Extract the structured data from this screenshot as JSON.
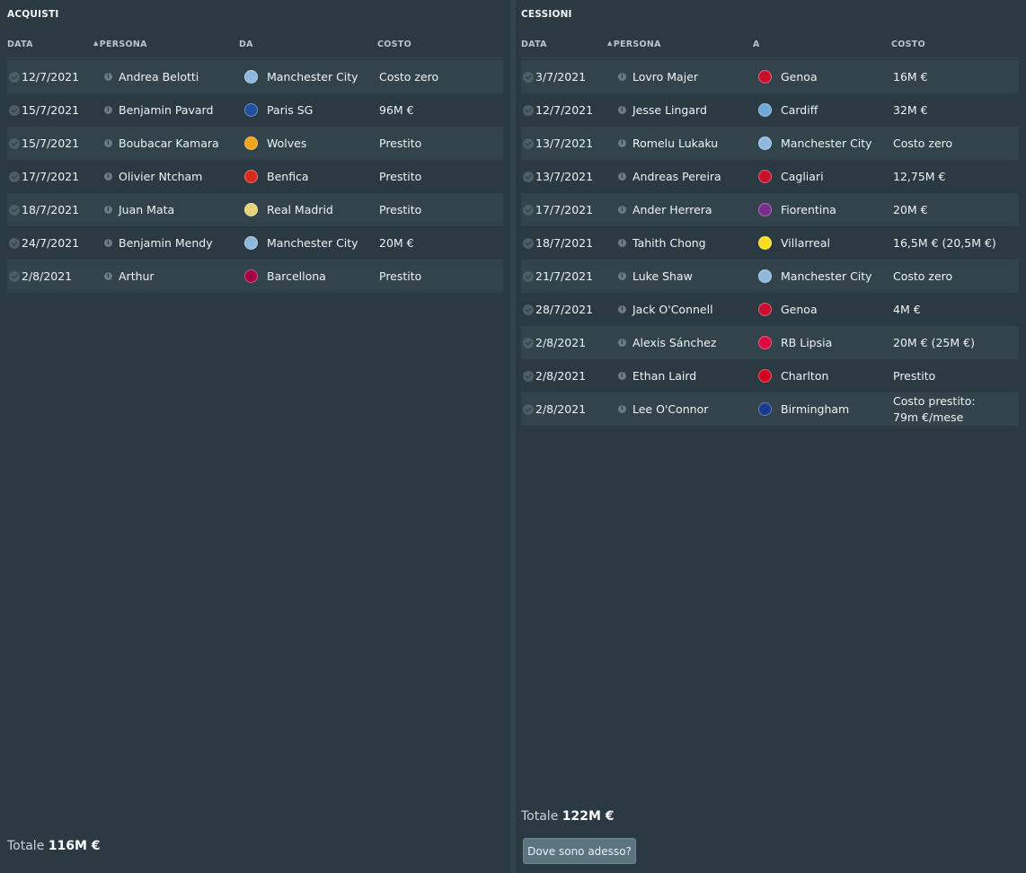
{
  "acquisti": {
    "title": "ACQUISTI",
    "columns": {
      "data": "DATA",
      "persona": "PERSONA",
      "da": "DA",
      "costo": "COSTO"
    },
    "rows": [
      {
        "date": "12/7/2021",
        "person": "Andrea Belotti",
        "club": "Manchester City",
        "cost": "Costo zero",
        "crest_color": "#8fb8de"
      },
      {
        "date": "15/7/2021",
        "person": "Benjamin Pavard",
        "club": "Paris SG",
        "cost": "96M €",
        "crest_color": "#1f4f9e"
      },
      {
        "date": "15/7/2021",
        "person": "Boubacar Kamara",
        "club": "Wolves",
        "cost": "Prestito",
        "crest_color": "#f1a51c"
      },
      {
        "date": "17/7/2021",
        "person": "Olivier Ntcham",
        "club": "Benfica",
        "cost": "Prestito",
        "crest_color": "#d52b1e"
      },
      {
        "date": "18/7/2021",
        "person": "Juan Mata",
        "club": "Real Madrid",
        "cost": "Prestito",
        "crest_color": "#e8d27a"
      },
      {
        "date": "24/7/2021",
        "person": "Benjamin Mendy",
        "club": "Manchester City",
        "cost": "20M €",
        "crest_color": "#8fb8de"
      },
      {
        "date": "2/8/2021",
        "person": "Arthur",
        "club": "Barcellona",
        "cost": "Prestito",
        "crest_color": "#a50044"
      }
    ],
    "total_label": "Totale",
    "total_value": "116M €"
  },
  "cessioni": {
    "title": "CESSIONI",
    "columns": {
      "data": "DATA",
      "persona": "PERSONA",
      "a": "A",
      "costo": "COSTO"
    },
    "rows": [
      {
        "date": "3/7/2021",
        "person": "Lovro Majer",
        "club": "Genoa",
        "cost": "16M €",
        "crest_color": "#c8102e"
      },
      {
        "date": "12/7/2021",
        "person": "Jesse Lingard",
        "club": "Cardiff",
        "cost": "32M €",
        "crest_color": "#6fa8dc"
      },
      {
        "date": "13/7/2021",
        "person": "Romelu Lukaku",
        "club": "Manchester City",
        "cost": "Costo zero",
        "crest_color": "#8fb8de"
      },
      {
        "date": "13/7/2021",
        "person": "Andreas Pereira",
        "club": "Cagliari",
        "cost": "12,75M €",
        "crest_color": "#c8102e"
      },
      {
        "date": "17/7/2021",
        "person": "Ander Herrera",
        "club": "Fiorentina",
        "cost": "20M €",
        "crest_color": "#7b2c8f"
      },
      {
        "date": "18/7/2021",
        "person": "Tahith Chong",
        "club": "Villarreal",
        "cost": "16,5M € (20,5M €)",
        "crest_color": "#f7dd1c"
      },
      {
        "date": "21/7/2021",
        "person": "Luke Shaw",
        "club": "Manchester City",
        "cost": "Costo zero",
        "crest_color": "#8fb8de"
      },
      {
        "date": "28/7/2021",
        "person": "Jack O'Connell",
        "club": "Genoa",
        "cost": "4M €",
        "crest_color": "#c8102e"
      },
      {
        "date": "2/8/2021",
        "person": "Alexis Sánchez",
        "club": "RB Lipsia",
        "cost": "20M € (25M €)",
        "crest_color": "#dd0741"
      },
      {
        "date": "2/8/2021",
        "person": "Ethan Laird",
        "club": "Charlton",
        "cost": "Prestito",
        "crest_color": "#d4021d"
      },
      {
        "date": "2/8/2021",
        "person": "Lee O'Connor",
        "club": "Birmingham",
        "cost_lines": [
          "Costo prestito:",
          "79m €/mese"
        ],
        "crest_color": "#1a3a8f"
      }
    ],
    "total_label": "Totale",
    "total_value": "122M €",
    "where_button": "Dove sono adesso?"
  }
}
